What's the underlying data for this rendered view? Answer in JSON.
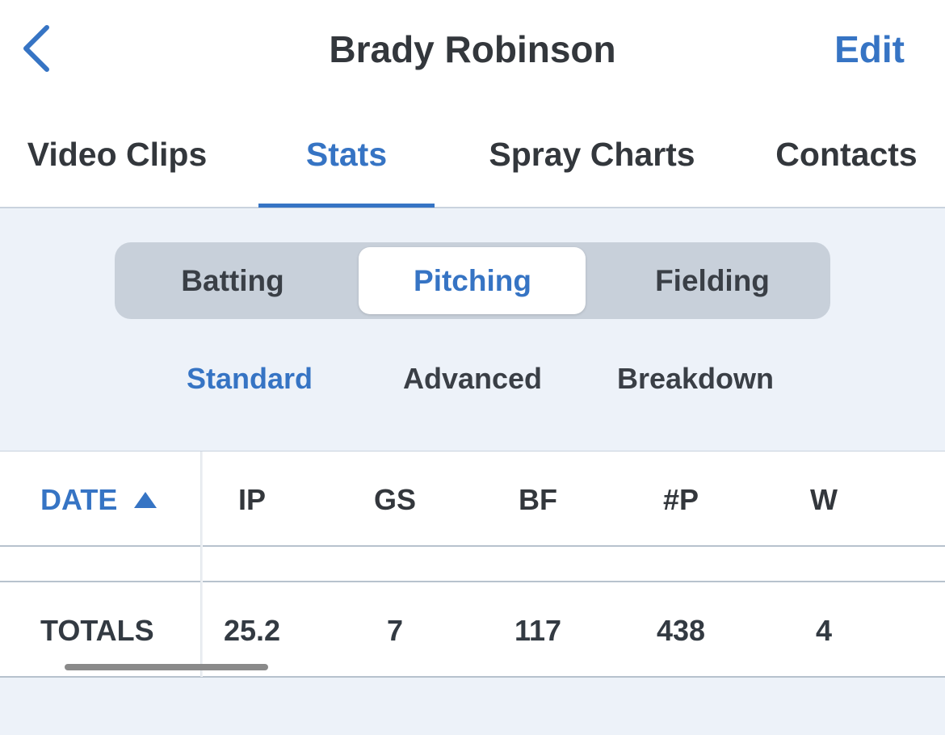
{
  "header": {
    "title": "Brady Robinson",
    "edit": "Edit"
  },
  "tabs": [
    "Video Clips",
    "Stats",
    "Spray Charts",
    "Contacts"
  ],
  "segments": [
    "Batting",
    "Pitching",
    "Fielding"
  ],
  "subtabs": [
    "Standard",
    "Advanced",
    "Breakdown"
  ],
  "table": {
    "date_header": "DATE",
    "columns": [
      "IP",
      "GS",
      "BF",
      "#P",
      "W"
    ],
    "totals_label": "TOTALS",
    "totals": [
      25.2,
      7,
      117,
      438,
      4
    ]
  }
}
